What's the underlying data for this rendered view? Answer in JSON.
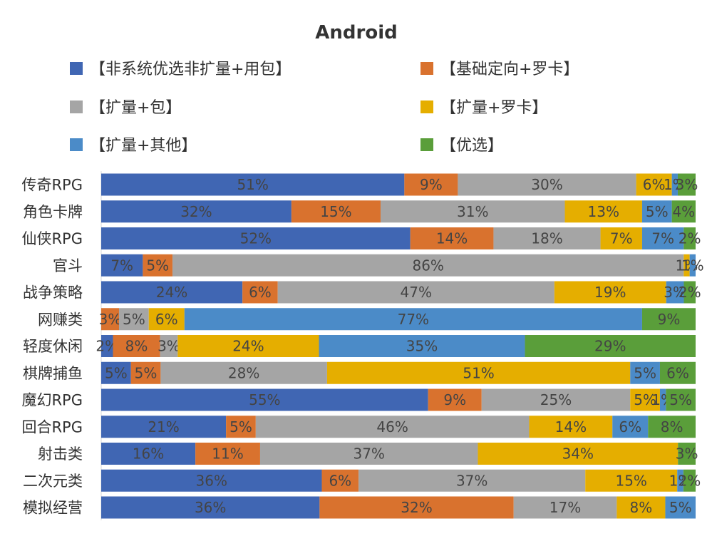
{
  "chart_data": {
    "type": "bar",
    "orientation": "horizontal",
    "stacked": true,
    "title": "Android",
    "categories": [
      "传奇RPG",
      "角色卡牌",
      "仙侠RPG",
      "官斗",
      "战争策略",
      "网赚类",
      "轻度休闲",
      "棋牌捕鱼",
      "魔幻RPG",
      "回合RPG",
      "射击类",
      "二次元类",
      "模拟经营"
    ],
    "series": [
      {
        "name": "【非系统优选非扩量+用包】",
        "color": "#4066B3",
        "values": [
          51,
          32,
          52,
          7,
          24,
          0,
          2,
          5,
          55,
          21,
          16,
          36,
          36
        ],
        "labels": [
          "51%",
          "32%",
          "52%",
          "7%",
          "24%",
          "",
          "2%",
          "5%",
          "55%",
          "21%",
          "16%",
          "36%",
          "36%"
        ]
      },
      {
        "name": "【基础定向+罗卡】",
        "color": "#D9722E",
        "values": [
          9,
          15,
          14,
          5,
          6,
          3,
          8,
          5,
          9,
          5,
          11,
          6,
          32
        ],
        "labels": [
          "9%",
          "15%",
          "14%",
          "5%",
          "6%",
          "3%",
          "8%",
          "5%",
          "9%",
          "5%",
          "11%",
          "6%",
          "32%"
        ]
      },
      {
        "name": "【扩量+包】",
        "color": "#A5A5A5",
        "values": [
          30,
          31,
          18,
          86,
          47,
          5,
          3,
          28,
          25,
          46,
          37,
          37,
          17
        ],
        "labels": [
          "30%",
          "31%",
          "18%",
          "86%",
          "47%",
          "5%",
          "3%",
          "28%",
          "25%",
          "46%",
          "37%",
          "37%",
          "17%"
        ]
      },
      {
        "name": "【扩量+罗卡】",
        "color": "#E5AE00",
        "values": [
          6,
          13,
          7,
          1,
          19,
          6,
          24,
          51,
          5,
          14,
          34,
          15,
          8
        ],
        "labels": [
          "6%",
          "13%",
          "7%",
          "1%",
          "19%",
          "6%",
          "24%",
          "51%",
          "5%",
          "14%",
          "34%",
          "15%",
          "8%"
        ]
      },
      {
        "name": "【扩量+其他】",
        "color": "#4B8BC8",
        "values": [
          1,
          5,
          7,
          1,
          3,
          77,
          35,
          5,
          1,
          6,
          0,
          1,
          5
        ],
        "labels": [
          "1%",
          "5%",
          "7%",
          "1%",
          "3%",
          "77%",
          "35%",
          "5%",
          "1%",
          "6%",
          "",
          "1%",
          "5%"
        ]
      },
      {
        "name": "【优选】",
        "color": "#5A9E3A",
        "values": [
          3,
          4,
          2,
          0,
          2,
          9,
          29,
          6,
          5,
          8,
          3,
          2,
          0
        ],
        "labels": [
          "3%",
          "4%",
          "2%",
          "",
          "2%",
          "9%",
          "29%",
          "6%",
          "5%",
          "8%",
          "3%",
          "2%",
          ""
        ]
      }
    ],
    "xlim": [
      0,
      100
    ],
    "grid": false,
    "legend_position": "top"
  }
}
